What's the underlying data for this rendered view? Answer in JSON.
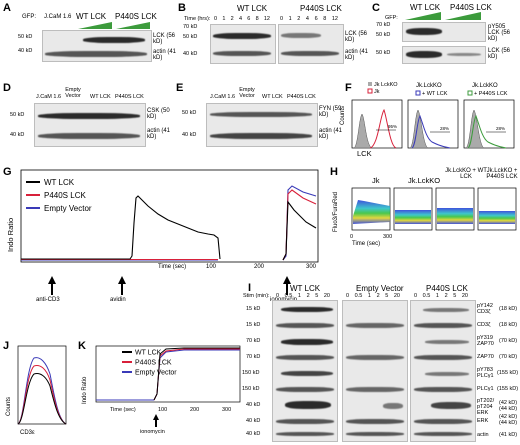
{
  "panels": {
    "A": {
      "label": "A",
      "gfp": "GFP:",
      "lanes": [
        "J.CaM 1.6",
        "WT LCK",
        "P440S LCK"
      ],
      "mw": [
        "50 kD",
        "40 kD"
      ],
      "bands": [
        "LCK (56 kD)",
        "actin (41 kD)"
      ]
    },
    "B": {
      "label": "B",
      "time_label": "Time (hrs):",
      "groups": [
        "WT LCK",
        "P440S LCK"
      ],
      "times": [
        "0",
        "1",
        "2",
        "4",
        "6",
        "8",
        "12"
      ],
      "mw": [
        "70 kD",
        "50 kD",
        "40 kD"
      ],
      "bands": [
        "LCK (56 kD)",
        "actin (41 kD)"
      ]
    },
    "C": {
      "label": "C",
      "gfp": "GFP:",
      "groups": [
        "WT LCK",
        "P440S LCK"
      ],
      "mw": [
        "70 kD",
        "50 kD",
        "50 kD"
      ],
      "bands": [
        "pY505 LCK (56 kD)",
        "LCK (56 kD)"
      ]
    },
    "D": {
      "label": "D",
      "lanes": [
        "J.CaM 1.6",
        "Empty Vector",
        "WT LCK",
        "P440S LCK"
      ],
      "mw": [
        "50 kD",
        "40 kD"
      ],
      "bands": [
        "CSK (50 kD)",
        "actin (41 kD)"
      ]
    },
    "E": {
      "label": "E",
      "lanes": [
        "J.CaM 1.6",
        "Empty Vector",
        "WT LCK",
        "P440S LCK"
      ],
      "mw": [
        "50 kD",
        "40 kD"
      ],
      "bands": [
        "FYN (59 kD)",
        "actin (41 kD)"
      ]
    },
    "F": {
      "label": "F",
      "ylabel": "Counts",
      "xlabel": "LCK",
      "plots": [
        {
          "legend": [
            "Jk LckKO",
            "Jk"
          ],
          "pct": "95%"
        },
        {
          "title": "Jk.LckKO",
          "legend": [
            "+ WT LCK"
          ],
          "pct": "28%"
        },
        {
          "title": "Jk.LckKO",
          "legend": [
            "+ P440S LCK"
          ],
          "pct": "28%"
        }
      ]
    },
    "G": {
      "label": "G",
      "ylabel": "Indo Ratio",
      "xlabel": "Time (sec)",
      "ticks": [
        "100",
        "200",
        "300"
      ],
      "legend": [
        "WT LCK",
        "P440S LCK",
        "Empty Vector"
      ],
      "colors": {
        "wt": "#000000",
        "p440s": "#d8203a",
        "empty": "#3a3ab8"
      },
      "arrows": [
        "anti-CD3",
        "avidin",
        "ionomycin"
      ]
    },
    "H": {
      "label": "H",
      "ylabel": "Fluo3/FuraRed",
      "xlabel": "Time (sec)",
      "titles": [
        "Jk",
        "Jk.LckKO",
        "Jk.LckKO + WT LCK",
        "Jk.LckKO + P440S LCK"
      ],
      "ticks": [
        "0",
        "300"
      ]
    },
    "I": {
      "label": "I",
      "stim": "Stim (min):",
      "groups": [
        "WT LCK",
        "Empty Vector",
        "P440S LCK"
      ],
      "times": [
        "0",
        "0.5",
        "1",
        "2",
        "5",
        "20"
      ],
      "mw": [
        "15 kD",
        "15 kD",
        "70 kD",
        "70 kD",
        "150 kD",
        "150 kD",
        "40 kD",
        "40 kD",
        "40 kD"
      ],
      "bands": [
        {
          "name": "pY142 CD3ζ",
          "kd": "(18 kD)"
        },
        {
          "name": "CD3ζ",
          "kd": "(18 kD)"
        },
        {
          "name": "pY319 ZAP70",
          "kd": "(70 kD)"
        },
        {
          "name": "ZAP70",
          "kd": "(70 kD)"
        },
        {
          "name": "pY783 PLCγ1",
          "kd": "(155 kD)"
        },
        {
          "name": "PLCγ1",
          "kd": "(155 kD)"
        },
        {
          "name": "pT202/ pT204 ERK",
          "kd": "(42 kD) (44 kD)"
        },
        {
          "name": "ERK",
          "kd": "(42 kD) (44 kD)"
        },
        {
          "name": "actin",
          "kd": "(41 kD)"
        }
      ]
    },
    "J": {
      "label": "J",
      "ylabel": "Counts",
      "xlabel": "CD3ε"
    },
    "K": {
      "label": "K",
      "ylabel": "Indo Ratio",
      "xlabel": "Time (sec)",
      "ticks": [
        "100",
        "200",
        "300"
      ],
      "legend": [
        "WT LCK",
        "P440S LCK",
        "Empty Vector"
      ],
      "arrow": "ionomycin"
    }
  }
}
